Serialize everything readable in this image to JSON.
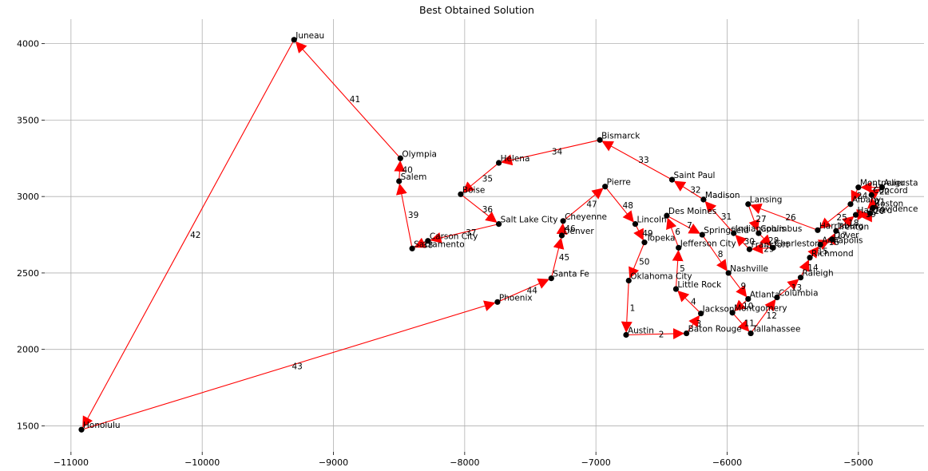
{
  "chart_data": {
    "type": "line",
    "title": "Best Obtained Solution",
    "xlabel": "",
    "ylabel": "",
    "xlim": [
      -11200,
      -4500
    ],
    "ylim": [
      1330,
      4160
    ],
    "xticks": [
      -11000,
      -10000,
      -9000,
      -8000,
      -7000,
      -6000,
      -5000
    ],
    "yticks": [
      1500,
      2000,
      2500,
      3000,
      3500,
      4000
    ],
    "xtick_labels": [
      "−11000",
      "−10000",
      "−9000",
      "−8000",
      "−7000",
      "−6000",
      "−5000"
    ],
    "ytick_labels": [
      "1500",
      "2000",
      "2500",
      "3000",
      "3500",
      "4000"
    ],
    "grid": true,
    "point_color": "#000000",
    "edge_color": "#ff0000",
    "cities": [
      {
        "name": "Oklahoma City",
        "x": -6750,
        "y": 2450
      },
      {
        "name": "Austin",
        "x": -6770,
        "y": 2095
      },
      {
        "name": "Baton Rouge",
        "x": -6310,
        "y": 2105
      },
      {
        "name": "Jackson",
        "x": -6200,
        "y": 2235
      },
      {
        "name": "Little Rock",
        "x": -6390,
        "y": 2395
      },
      {
        "name": "Jefferson City",
        "x": -6370,
        "y": 2665
      },
      {
        "name": "Des Moines",
        "x": -6460,
        "y": 2875
      },
      {
        "name": "Springfield",
        "x": -6190,
        "y": 2750
      },
      {
        "name": "Nashville",
        "x": -5990,
        "y": 2500
      },
      {
        "name": "Atlanta",
        "x": -5840,
        "y": 2330
      },
      {
        "name": "Montgomery",
        "x": -5960,
        "y": 2240
      },
      {
        "name": "Tallahassee",
        "x": -5820,
        "y": 2105
      },
      {
        "name": "Columbia",
        "x": -5620,
        "y": 2340
      },
      {
        "name": "Raleigh",
        "x": -5440,
        "y": 2470
      },
      {
        "name": "Richmond",
        "x": -5370,
        "y": 2600
      },
      {
        "name": "Annapolis",
        "x": -5290,
        "y": 2685
      },
      {
        "name": "Dover",
        "x": -5200,
        "y": 2720
      },
      {
        "name": "Trenton",
        "x": -5170,
        "y": 2775
      },
      {
        "name": "Hartford",
        "x": -5020,
        "y": 2880
      },
      {
        "name": "Providence",
        "x": -4910,
        "y": 2890
      },
      {
        "name": "Boston",
        "x": -4890,
        "y": 2925
      },
      {
        "name": "Concord",
        "x": -4900,
        "y": 3010
      },
      {
        "name": "Augusta",
        "x": -4820,
        "y": 3060
      },
      {
        "name": "Montpelier",
        "x": -5000,
        "y": 3060
      },
      {
        "name": "Albany",
        "x": -5060,
        "y": 2950
      },
      {
        "name": "Harrisburg",
        "x": -5310,
        "y": 2780
      },
      {
        "name": "Lansing",
        "x": -5840,
        "y": 2950
      },
      {
        "name": "Columbus",
        "x": -5760,
        "y": 2760
      },
      {
        "name": "Charleston",
        "x": -5650,
        "y": 2665
      },
      {
        "name": "Frankfort",
        "x": -5830,
        "y": 2655
      },
      {
        "name": "Indianapolis",
        "x": -5950,
        "y": 2760
      },
      {
        "name": "Madison",
        "x": -6180,
        "y": 2980
      },
      {
        "name": "Saint Paul",
        "x": -6420,
        "y": 3110
      },
      {
        "name": "Bismarck",
        "x": -6970,
        "y": 3370
      },
      {
        "name": "Helena",
        "x": -7740,
        "y": 3220
      },
      {
        "name": "Boise",
        "x": -8030,
        "y": 3015
      },
      {
        "name": "Salt Lake City",
        "x": -7740,
        "y": 2820
      },
      {
        "name": "Carson City",
        "x": -8280,
        "y": 2710
      },
      {
        "name": "Sacramento",
        "x": -8400,
        "y": 2660
      },
      {
        "name": "Salem",
        "x": -8500,
        "y": 3100
      },
      {
        "name": "Olympia",
        "x": -8490,
        "y": 3250
      },
      {
        "name": "Juneau",
        "x": -9300,
        "y": 4025
      },
      {
        "name": "Honolulu",
        "x": -10920,
        "y": 1475
      },
      {
        "name": "Phoenix",
        "x": -7750,
        "y": 2310
      },
      {
        "name": "Santa Fe",
        "x": -7340,
        "y": 2465
      },
      {
        "name": "Denver",
        "x": -7260,
        "y": 2745
      },
      {
        "name": "Cheyenne",
        "x": -7250,
        "y": 2840
      },
      {
        "name": "Pierre",
        "x": -6930,
        "y": 3065
      },
      {
        "name": "Lincoln",
        "x": -6700,
        "y": 2820
      },
      {
        "name": "Topeka",
        "x": -6630,
        "y": 2700
      }
    ],
    "edge_labels": [
      "1",
      "2",
      "3",
      "4",
      "5",
      "6",
      "7",
      "8",
      "9",
      "10",
      "11",
      "12",
      "13",
      "14",
      "15",
      "16",
      "17",
      "18",
      "19",
      "20",
      "21",
      "22",
      "23",
      "24",
      "25",
      "26",
      "27",
      "28",
      "29",
      "30",
      "31",
      "32",
      "33",
      "34",
      "35",
      "36",
      "37",
      "38",
      "39",
      "40",
      "41",
      "42",
      "43",
      "44",
      "45",
      "46",
      "47",
      "48",
      "49",
      "50"
    ]
  }
}
